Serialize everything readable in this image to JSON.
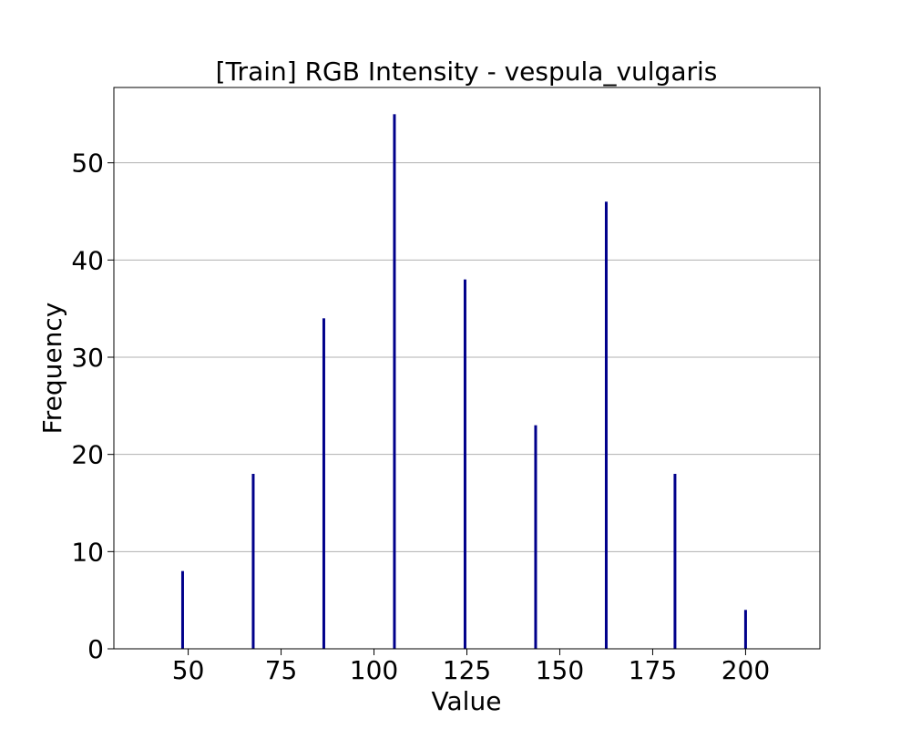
{
  "chart_data": {
    "type": "bar",
    "title": "[Train] RGB Intensity - vespula_vulgaris",
    "xlabel": "Value",
    "ylabel": "Frequency",
    "xlim": [
      30,
      220
    ],
    "ylim": [
      0,
      57.75
    ],
    "xticks": [
      50,
      75,
      100,
      125,
      150,
      175,
      200
    ],
    "yticks": [
      0,
      10,
      20,
      30,
      40,
      50
    ],
    "grid": "y-only",
    "bar_color": "#00008b",
    "x": [
      48.5,
      67.5,
      86.5,
      105.5,
      124.5,
      143.5,
      162.5,
      181.0,
      200.0
    ],
    "values": [
      8,
      18,
      34,
      55,
      38,
      23,
      46,
      18,
      4
    ]
  }
}
